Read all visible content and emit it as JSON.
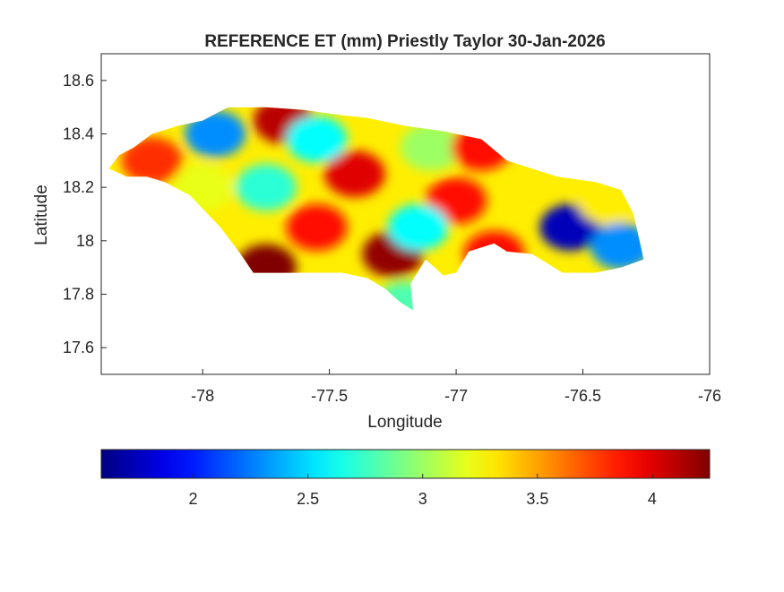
{
  "chart_data": {
    "type": "heatmap",
    "title": "REFERENCE ET (mm) Priestly Taylor 30-Jan-2026",
    "xlabel": "Longitude",
    "ylabel": "Latitude",
    "xlim": [
      -78.4,
      -76
    ],
    "ylim": [
      17.5,
      18.7
    ],
    "x_ticks": [
      -78,
      -77.5,
      -77,
      -76.5,
      -76
    ],
    "x_tick_labels": [
      "-78",
      "-77.5",
      "-77",
      "-76.5",
      "-76"
    ],
    "y_ticks": [
      17.6,
      17.8,
      18,
      18.2,
      18.4,
      18.6
    ],
    "y_tick_labels": [
      "17.6",
      "17.8",
      "18",
      "18.2",
      "18.4",
      "18.6"
    ],
    "colormap": "jet",
    "color_range": [
      1.6,
      4.25
    ],
    "colorbar": {
      "location": "below",
      "ticks": [
        2,
        2.5,
        3,
        3.5,
        4
      ],
      "tick_labels": [
        "2",
        "2.5",
        "3",
        "3.5",
        "4"
      ]
    },
    "grid": false,
    "region_outline": [
      [
        -78.37,
        18.27
      ],
      [
        -78.33,
        18.32
      ],
      [
        -78.27,
        18.35
      ],
      [
        -78.2,
        18.4
      ],
      [
        -78.1,
        18.43
      ],
      [
        -78.0,
        18.45
      ],
      [
        -77.9,
        18.5
      ],
      [
        -77.75,
        18.5
      ],
      [
        -77.6,
        18.49
      ],
      [
        -77.45,
        18.47
      ],
      [
        -77.35,
        18.46
      ],
      [
        -77.2,
        18.43
      ],
      [
        -77.05,
        18.41
      ],
      [
        -76.9,
        18.38
      ],
      [
        -76.8,
        18.3
      ],
      [
        -76.7,
        18.27
      ],
      [
        -76.6,
        18.24
      ],
      [
        -76.45,
        18.22
      ],
      [
        -76.35,
        18.19
      ],
      [
        -76.3,
        18.1
      ],
      [
        -76.26,
        17.93
      ],
      [
        -76.35,
        17.9
      ],
      [
        -76.45,
        17.88
      ],
      [
        -76.58,
        17.88
      ],
      [
        -76.7,
        17.95
      ],
      [
        -76.8,
        17.96
      ],
      [
        -76.85,
        17.99
      ],
      [
        -76.95,
        17.96
      ],
      [
        -77.0,
        17.88
      ],
      [
        -77.05,
        17.87
      ],
      [
        -77.12,
        17.93
      ],
      [
        -77.18,
        17.84
      ],
      [
        -77.17,
        17.74
      ],
      [
        -77.22,
        17.77
      ],
      [
        -77.28,
        17.82
      ],
      [
        -77.35,
        17.86
      ],
      [
        -77.45,
        17.88
      ],
      [
        -77.55,
        17.88
      ],
      [
        -77.7,
        17.88
      ],
      [
        -77.8,
        17.88
      ],
      [
        -77.85,
        17.95
      ],
      [
        -77.93,
        18.05
      ],
      [
        -78.05,
        18.17
      ],
      [
        -78.15,
        18.22
      ],
      [
        -78.22,
        18.24
      ],
      [
        -78.3,
        18.24
      ],
      [
        -78.37,
        18.27
      ]
    ],
    "field_centers": [
      {
        "lon": -77.68,
        "lat": 18.45,
        "value": 4.1
      },
      {
        "lon": -77.75,
        "lat": 17.9,
        "value": 4.25
      },
      {
        "lon": -77.55,
        "lat": 18.05,
        "value": 3.9
      },
      {
        "lon": -77.25,
        "lat": 17.95,
        "value": 4.2
      },
      {
        "lon": -77.4,
        "lat": 18.25,
        "value": 4.0
      },
      {
        "lon": -77.0,
        "lat": 18.15,
        "value": 3.9
      },
      {
        "lon": -76.85,
        "lat": 17.95,
        "value": 3.9
      },
      {
        "lon": -77.95,
        "lat": 18.4,
        "value": 2.3
      },
      {
        "lon": -77.75,
        "lat": 18.2,
        "value": 2.7
      },
      {
        "lon": -77.55,
        "lat": 18.38,
        "value": 2.6
      },
      {
        "lon": -77.1,
        "lat": 18.35,
        "value": 3.0
      },
      {
        "lon": -77.15,
        "lat": 18.05,
        "value": 2.6
      },
      {
        "lon": -76.55,
        "lat": 18.05,
        "value": 1.75
      },
      {
        "lon": -76.35,
        "lat": 17.98,
        "value": 2.3
      },
      {
        "lon": -78.2,
        "lat": 18.3,
        "value": 3.8
      },
      {
        "lon": -78.0,
        "lat": 18.2,
        "value": 3.2
      },
      {
        "lon": -76.9,
        "lat": 18.35,
        "value": 3.9
      },
      {
        "lon": -76.4,
        "lat": 18.15,
        "value": 3.3
      },
      {
        "lon": -77.2,
        "lat": 17.76,
        "value": 2.8
      }
    ]
  }
}
